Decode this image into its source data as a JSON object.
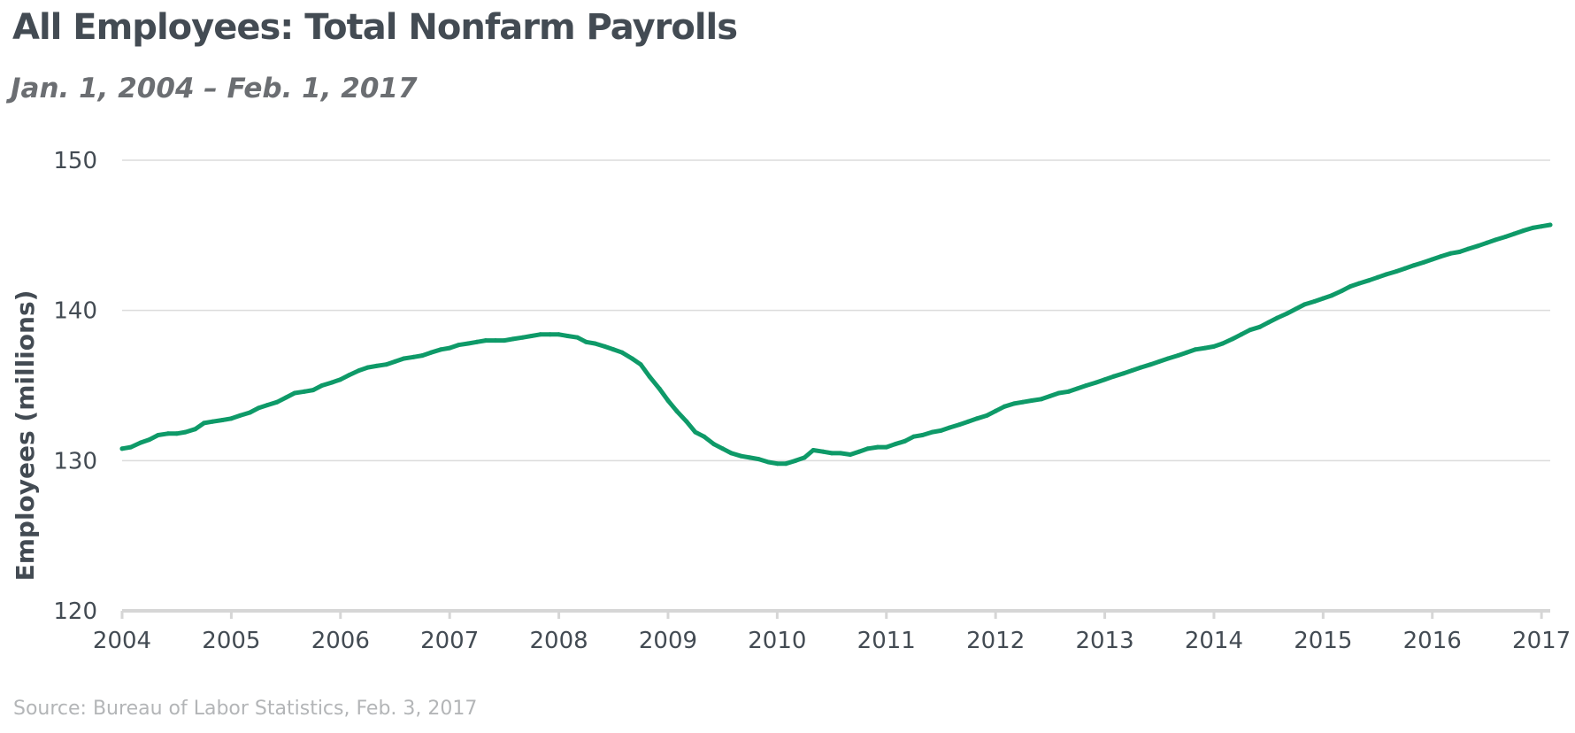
{
  "chart_data": {
    "type": "line",
    "title": "All Employees: Total Nonfarm Payrolls",
    "subtitle": "Jan. 1, 2004 – Feb. 1, 2017",
    "ylabel": "Employees (millions)",
    "xlabel": "",
    "source": "Source: Bureau of Labor Statistics, Feb. 3, 2017",
    "ylim": [
      120,
      150
    ],
    "yticks": [
      "120",
      "130",
      "140",
      "150"
    ],
    "xlim": [
      2004,
      2017.08
    ],
    "xticks": [
      "2004",
      "2005",
      "2006",
      "2007",
      "2008",
      "2009",
      "2010",
      "2011",
      "2012",
      "2013",
      "2014",
      "2015",
      "2016",
      "2017"
    ],
    "grid": true,
    "legend": "none",
    "line_color": "#0e9a68",
    "grid_color": "#dcdcdc",
    "axis_color": "#d6d6d6",
    "series": [
      {
        "x": [
          2004.0,
          2004.08,
          2004.17,
          2004.25,
          2004.33,
          2004.42,
          2004.5,
          2004.58,
          2004.67,
          2004.75,
          2004.83,
          2004.92,
          2005.0,
          2005.08,
          2005.17,
          2005.25,
          2005.33,
          2005.42,
          2005.5,
          2005.58,
          2005.67,
          2005.75,
          2005.83,
          2005.92,
          2006.0,
          2006.08,
          2006.17,
          2006.25,
          2006.33,
          2006.42,
          2006.5,
          2006.58,
          2006.67,
          2006.75,
          2006.83,
          2006.92,
          2007.0,
          2007.08,
          2007.17,
          2007.25,
          2007.33,
          2007.42,
          2007.5,
          2007.58,
          2007.67,
          2007.75,
          2007.83,
          2007.92,
          2008.0,
          2008.08,
          2008.17,
          2008.25,
          2008.33,
          2008.42,
          2008.5,
          2008.58,
          2008.67,
          2008.75,
          2008.83,
          2008.92,
          2009.0,
          2009.08,
          2009.17,
          2009.25,
          2009.33,
          2009.42,
          2009.5,
          2009.58,
          2009.67,
          2009.75,
          2009.83,
          2009.92,
          2010.0,
          2010.08,
          2010.17,
          2010.25,
          2010.33,
          2010.42,
          2010.5,
          2010.58,
          2010.67,
          2010.75,
          2010.83,
          2010.92,
          2011.0,
          2011.08,
          2011.17,
          2011.25,
          2011.33,
          2011.42,
          2011.5,
          2011.58,
          2011.67,
          2011.75,
          2011.83,
          2011.92,
          2012.0,
          2012.08,
          2012.17,
          2012.25,
          2012.33,
          2012.42,
          2012.5,
          2012.58,
          2012.67,
          2012.75,
          2012.83,
          2012.92,
          2013.0,
          2013.08,
          2013.17,
          2013.25,
          2013.33,
          2013.42,
          2013.5,
          2013.58,
          2013.67,
          2013.75,
          2013.83,
          2013.92,
          2014.0,
          2014.08,
          2014.17,
          2014.25,
          2014.33,
          2014.42,
          2014.5,
          2014.58,
          2014.67,
          2014.75,
          2014.83,
          2014.92,
          2015.0,
          2015.08,
          2015.17,
          2015.25,
          2015.33,
          2015.42,
          2015.5,
          2015.58,
          2015.67,
          2015.75,
          2015.83,
          2015.92,
          2016.0,
          2016.08,
          2016.17,
          2016.25,
          2016.33,
          2016.42,
          2016.5,
          2016.58,
          2016.67,
          2016.75,
          2016.83,
          2016.92,
          2017.0,
          2017.08
        ],
        "values": [
          130.8,
          130.9,
          131.2,
          131.4,
          131.7,
          131.8,
          131.8,
          131.9,
          132.1,
          132.5,
          132.6,
          132.7,
          132.8,
          133.0,
          133.2,
          133.5,
          133.7,
          133.9,
          134.2,
          134.5,
          134.6,
          134.7,
          135.0,
          135.2,
          135.4,
          135.7,
          136.0,
          136.2,
          136.3,
          136.4,
          136.6,
          136.8,
          136.9,
          137.0,
          137.2,
          137.4,
          137.5,
          137.7,
          137.8,
          137.9,
          138.0,
          138.0,
          138.0,
          138.1,
          138.2,
          138.3,
          138.4,
          138.4,
          138.4,
          138.3,
          138.2,
          137.9,
          137.8,
          137.6,
          137.4,
          137.2,
          136.8,
          136.4,
          135.6,
          134.8,
          134.0,
          133.3,
          132.6,
          131.9,
          131.6,
          131.1,
          130.8,
          130.5,
          130.3,
          130.2,
          130.1,
          129.9,
          129.8,
          129.8,
          130.0,
          130.2,
          130.7,
          130.6,
          130.5,
          130.5,
          130.4,
          130.6,
          130.8,
          130.9,
          130.9,
          131.1,
          131.3,
          131.6,
          131.7,
          131.9,
          132.0,
          132.2,
          132.4,
          132.6,
          132.8,
          133.0,
          133.3,
          133.6,
          133.8,
          133.9,
          134.0,
          134.1,
          134.3,
          134.5,
          134.6,
          134.8,
          135.0,
          135.2,
          135.4,
          135.6,
          135.8,
          136.0,
          136.2,
          136.4,
          136.6,
          136.8,
          137.0,
          137.2,
          137.4,
          137.5,
          137.6,
          137.8,
          138.1,
          138.4,
          138.7,
          138.9,
          139.2,
          139.5,
          139.8,
          140.1,
          140.4,
          140.6,
          140.8,
          141.0,
          141.3,
          141.6,
          141.8,
          142.0,
          142.2,
          142.4,
          142.6,
          142.8,
          143.0,
          143.2,
          143.4,
          143.6,
          143.8,
          143.9,
          144.1,
          144.3,
          144.5,
          144.7,
          144.9,
          145.1,
          145.3,
          145.5,
          145.6,
          145.7
        ]
      }
    ]
  }
}
